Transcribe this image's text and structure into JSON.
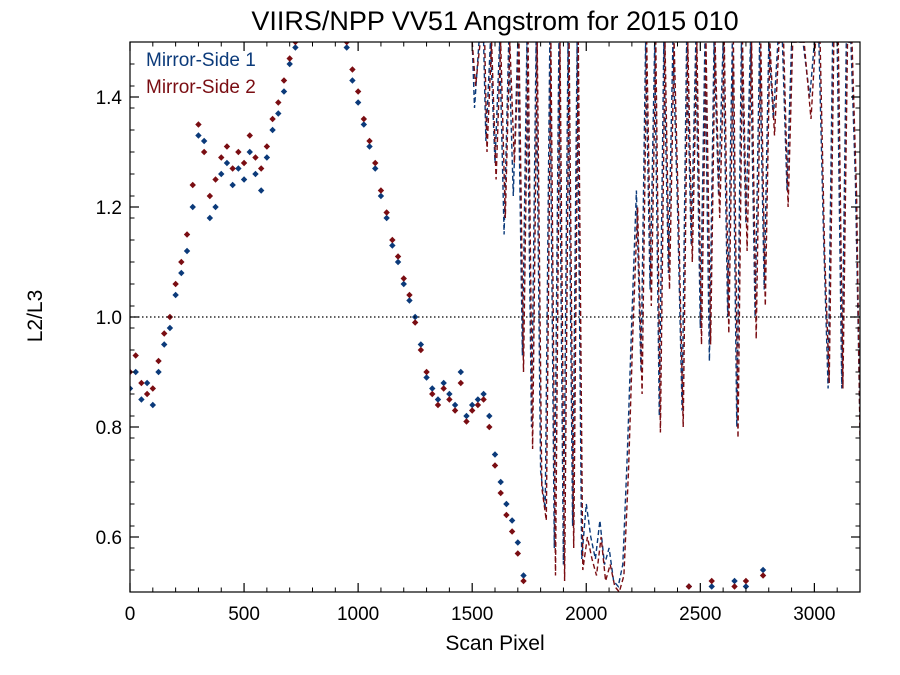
{
  "chart_data": {
    "type": "scatter",
    "title": "VIIRS/NPP VV51 Angstrom for 2015 010",
    "xlabel": "Scan Pixel",
    "ylabel": "L2/L3",
    "xlim": [
      0,
      3200
    ],
    "ylim": [
      0.5,
      1.5
    ],
    "x_ticks": [
      0,
      500,
      1000,
      1500,
      2000,
      2500,
      3000
    ],
    "x_tick_labels": [
      "0",
      "500",
      "1000",
      "1500",
      "2000",
      "2500",
      "3000"
    ],
    "y_ticks": [
      0.6,
      0.8,
      1.0,
      1.2,
      1.4
    ],
    "y_tick_labels": [
      "0.6",
      "0.8",
      "1.0",
      "1.2",
      "1.4"
    ],
    "reference_line": {
      "y": 1.0,
      "style": "dotted"
    },
    "legend_position": "top-left",
    "series": [
      {
        "name": "Mirror-Side 1",
        "color": "#0b3a7a",
        "marker": "diamond",
        "points": [
          [
            0,
            0.87
          ],
          [
            25,
            0.9
          ],
          [
            50,
            0.85
          ],
          [
            75,
            0.88
          ],
          [
            100,
            0.84
          ],
          [
            125,
            0.9
          ],
          [
            150,
            0.95
          ],
          [
            175,
            0.98
          ],
          [
            200,
            1.04
          ],
          [
            225,
            1.08
          ],
          [
            250,
            1.12
          ],
          [
            275,
            1.2
          ],
          [
            300,
            1.33
          ],
          [
            325,
            1.32
          ],
          [
            350,
            1.18
          ],
          [
            375,
            1.2
          ],
          [
            400,
            1.26
          ],
          [
            425,
            1.28
          ],
          [
            450,
            1.24
          ],
          [
            475,
            1.27
          ],
          [
            500,
            1.25
          ],
          [
            525,
            1.3
          ],
          [
            550,
            1.26
          ],
          [
            575,
            1.23
          ],
          [
            600,
            1.29
          ],
          [
            625,
            1.34
          ],
          [
            650,
            1.37
          ],
          [
            675,
            1.41
          ],
          [
            700,
            1.46
          ],
          [
            725,
            1.49
          ],
          [
            950,
            1.49
          ],
          [
            975,
            1.43
          ],
          [
            1000,
            1.39
          ],
          [
            1025,
            1.35
          ],
          [
            1050,
            1.31
          ],
          [
            1075,
            1.27
          ],
          [
            1100,
            1.22
          ],
          [
            1125,
            1.18
          ],
          [
            1150,
            1.13
          ],
          [
            1175,
            1.1
          ],
          [
            1200,
            1.06
          ],
          [
            1225,
            1.03
          ],
          [
            1250,
            1.0
          ],
          [
            1275,
            0.95
          ],
          [
            1300,
            0.89
          ],
          [
            1325,
            0.87
          ],
          [
            1350,
            0.85
          ],
          [
            1375,
            0.88
          ],
          [
            1400,
            0.86
          ],
          [
            1425,
            0.84
          ],
          [
            1450,
            0.9
          ],
          [
            1475,
            0.82
          ],
          [
            1500,
            0.84
          ],
          [
            1525,
            0.85
          ],
          [
            1550,
            0.86
          ],
          [
            1575,
            0.82
          ],
          [
            1600,
            0.75
          ],
          [
            1625,
            0.7
          ],
          [
            1650,
            0.66
          ],
          [
            1675,
            0.63
          ],
          [
            1700,
            0.59
          ],
          [
            1725,
            0.53
          ],
          [
            2450,
            0.51
          ],
          [
            2550,
            0.51
          ],
          [
            2650,
            0.52
          ],
          [
            2700,
            0.51
          ],
          [
            2775,
            0.54
          ]
        ]
      },
      {
        "name": "Mirror-Side 2",
        "color": "#7a0d12",
        "marker": "diamond",
        "points": [
          [
            0,
            0.9
          ],
          [
            25,
            0.93
          ],
          [
            50,
            0.88
          ],
          [
            75,
            0.86
          ],
          [
            100,
            0.87
          ],
          [
            125,
            0.92
          ],
          [
            150,
            0.97
          ],
          [
            175,
            1.0
          ],
          [
            200,
            1.06
          ],
          [
            225,
            1.1
          ],
          [
            250,
            1.15
          ],
          [
            275,
            1.24
          ],
          [
            300,
            1.35
          ],
          [
            325,
            1.3
          ],
          [
            350,
            1.22
          ],
          [
            375,
            1.25
          ],
          [
            400,
            1.29
          ],
          [
            425,
            1.31
          ],
          [
            450,
            1.27
          ],
          [
            475,
            1.3
          ],
          [
            500,
            1.28
          ],
          [
            525,
            1.33
          ],
          [
            550,
            1.29
          ],
          [
            575,
            1.27
          ],
          [
            600,
            1.31
          ],
          [
            625,
            1.36
          ],
          [
            650,
            1.39
          ],
          [
            675,
            1.43
          ],
          [
            700,
            1.47
          ],
          [
            725,
            1.5
          ],
          [
            950,
            1.5
          ],
          [
            975,
            1.45
          ],
          [
            1000,
            1.41
          ],
          [
            1025,
            1.36
          ],
          [
            1050,
            1.32
          ],
          [
            1075,
            1.28
          ],
          [
            1100,
            1.23
          ],
          [
            1125,
            1.19
          ],
          [
            1150,
            1.14
          ],
          [
            1175,
            1.11
          ],
          [
            1200,
            1.07
          ],
          [
            1225,
            1.04
          ],
          [
            1250,
            0.99
          ],
          [
            1275,
            0.94
          ],
          [
            1300,
            0.9
          ],
          [
            1325,
            0.86
          ],
          [
            1350,
            0.84
          ],
          [
            1375,
            0.87
          ],
          [
            1400,
            0.85
          ],
          [
            1425,
            0.83
          ],
          [
            1450,
            0.88
          ],
          [
            1475,
            0.81
          ],
          [
            1500,
            0.83
          ],
          [
            1525,
            0.84
          ],
          [
            1550,
            0.85
          ],
          [
            1575,
            0.8
          ],
          [
            1600,
            0.73
          ],
          [
            1625,
            0.68
          ],
          [
            1650,
            0.64
          ],
          [
            1675,
            0.61
          ],
          [
            1700,
            0.57
          ],
          [
            1725,
            0.52
          ],
          [
            2450,
            0.51
          ],
          [
            2550,
            0.52
          ],
          [
            2650,
            0.51
          ],
          [
            2700,
            0.52
          ],
          [
            2775,
            0.53
          ]
        ]
      }
    ],
    "dashed_series": [
      {
        "series": "Mirror-Side 1",
        "color": "#0b3a7a",
        "points": [
          [
            1500,
            1.5
          ],
          [
            1510,
            1.38
          ],
          [
            1530,
            1.5
          ],
          [
            1550,
            1.5
          ],
          [
            1560,
            1.32
          ],
          [
            1580,
            1.5
          ],
          [
            1600,
            1.28
          ],
          [
            1620,
            1.5
          ],
          [
            1640,
            1.15
          ],
          [
            1660,
            1.5
          ],
          [
            1680,
            1.22
          ],
          [
            1700,
            1.5
          ],
          [
            1720,
            0.93
          ],
          [
            1740,
            1.5
          ],
          [
            1760,
            0.8
          ],
          [
            1780,
            1.5
          ],
          [
            1800,
            0.72
          ],
          [
            1820,
            0.65
          ],
          [
            1840,
            1.5
          ],
          [
            1860,
            0.58
          ],
          [
            1880,
            1.5
          ],
          [
            1900,
            0.55
          ],
          [
            1920,
            1.5
          ],
          [
            1940,
            0.62
          ],
          [
            1960,
            1.5
          ],
          [
            1980,
            0.56
          ],
          [
            2000,
            0.66
          ],
          [
            2020,
            0.6
          ],
          [
            2040,
            0.56
          ],
          [
            2060,
            0.63
          ],
          [
            2080,
            0.55
          ],
          [
            2100,
            0.58
          ],
          [
            2120,
            0.52
          ],
          [
            2140,
            0.51
          ],
          [
            2160,
            0.55
          ],
          [
            2180,
            0.75
          ],
          [
            2200,
            1.0
          ],
          [
            2220,
            1.23
          ],
          [
            2240,
            0.9
          ],
          [
            2260,
            1.5
          ],
          [
            2280,
            1.05
          ],
          [
            2300,
            1.5
          ],
          [
            2320,
            0.82
          ],
          [
            2340,
            1.5
          ],
          [
            2360,
            1.08
          ],
          [
            2380,
            1.5
          ],
          [
            2400,
            1.2
          ],
          [
            2420,
            0.83
          ],
          [
            2440,
            1.5
          ],
          [
            2460,
            1.13
          ],
          [
            2480,
            1.5
          ],
          [
            2500,
            0.98
          ],
          [
            2520,
            1.5
          ],
          [
            2540,
            0.92
          ],
          [
            2560,
            1.5
          ],
          [
            2580,
            1.22
          ],
          [
            2600,
            1.5
          ],
          [
            2620,
            1.0
          ],
          [
            2640,
            1.5
          ],
          [
            2660,
            0.8
          ],
          [
            2680,
            1.5
          ],
          [
            2700,
            1.17
          ],
          [
            2720,
            1.5
          ],
          [
            2740,
            1.0
          ],
          [
            2760,
            1.5
          ],
          [
            2780,
            1.05
          ],
          [
            2800,
            1.5
          ],
          [
            2820,
            1.36
          ],
          [
            2840,
            1.5
          ],
          [
            2860,
            1.5
          ],
          [
            2880,
            1.23
          ],
          [
            2900,
            1.5
          ],
          [
            2950,
            1.5
          ],
          [
            2980,
            1.4
          ],
          [
            3000,
            1.5
          ],
          [
            3020,
            1.5
          ],
          [
            3040,
            1.15
          ],
          [
            3060,
            0.87
          ],
          [
            3080,
            1.5
          ],
          [
            3100,
            1.5
          ],
          [
            3120,
            0.87
          ],
          [
            3140,
            1.5
          ],
          [
            3160,
            1.5
          ],
          [
            3180,
            1.25
          ],
          [
            3200,
            0.8
          ]
        ]
      },
      {
        "series": "Mirror-Side 2",
        "color": "#7a0d12",
        "points": [
          [
            1500,
            1.5
          ],
          [
            1515,
            1.42
          ],
          [
            1535,
            1.5
          ],
          [
            1555,
            1.5
          ],
          [
            1565,
            1.3
          ],
          [
            1585,
            1.5
          ],
          [
            1605,
            1.25
          ],
          [
            1625,
            1.5
          ],
          [
            1645,
            1.18
          ],
          [
            1665,
            1.5
          ],
          [
            1685,
            1.28
          ],
          [
            1705,
            1.5
          ],
          [
            1725,
            0.9
          ],
          [
            1745,
            1.5
          ],
          [
            1765,
            0.76
          ],
          [
            1785,
            1.5
          ],
          [
            1805,
            0.69
          ],
          [
            1825,
            0.63
          ],
          [
            1845,
            1.5
          ],
          [
            1865,
            0.53
          ],
          [
            1885,
            1.5
          ],
          [
            1905,
            0.52
          ],
          [
            1925,
            1.5
          ],
          [
            1945,
            0.58
          ],
          [
            1965,
            1.5
          ],
          [
            1985,
            0.54
          ],
          [
            2005,
            0.6
          ],
          [
            2025,
            0.56
          ],
          [
            2045,
            0.53
          ],
          [
            2065,
            0.6
          ],
          [
            2085,
            0.52
          ],
          [
            2105,
            0.55
          ],
          [
            2125,
            0.51
          ],
          [
            2145,
            0.5
          ],
          [
            2165,
            0.53
          ],
          [
            2185,
            0.72
          ],
          [
            2205,
            0.98
          ],
          [
            2225,
            1.2
          ],
          [
            2245,
            0.86
          ],
          [
            2265,
            1.5
          ],
          [
            2285,
            1.02
          ],
          [
            2305,
            1.5
          ],
          [
            2325,
            0.79
          ],
          [
            2345,
            1.5
          ],
          [
            2365,
            1.05
          ],
          [
            2385,
            1.5
          ],
          [
            2405,
            1.18
          ],
          [
            2425,
            0.8
          ],
          [
            2445,
            1.5
          ],
          [
            2465,
            1.1
          ],
          [
            2485,
            1.5
          ],
          [
            2505,
            0.95
          ],
          [
            2525,
            1.5
          ],
          [
            2545,
            0.95
          ],
          [
            2565,
            1.5
          ],
          [
            2585,
            1.18
          ],
          [
            2605,
            1.5
          ],
          [
            2625,
            0.97
          ],
          [
            2645,
            1.5
          ],
          [
            2665,
            0.78
          ],
          [
            2685,
            1.5
          ],
          [
            2705,
            1.12
          ],
          [
            2725,
            1.5
          ],
          [
            2745,
            0.96
          ],
          [
            2765,
            1.5
          ],
          [
            2785,
            1.02
          ],
          [
            2805,
            1.5
          ],
          [
            2825,
            1.33
          ],
          [
            2845,
            1.5
          ],
          [
            2865,
            1.5
          ],
          [
            2885,
            1.2
          ],
          [
            2905,
            1.5
          ],
          [
            2955,
            1.5
          ],
          [
            2985,
            1.36
          ],
          [
            3005,
            1.5
          ],
          [
            3025,
            1.5
          ],
          [
            3045,
            1.12
          ],
          [
            3065,
            0.88
          ],
          [
            3085,
            1.5
          ],
          [
            3105,
            1.5
          ],
          [
            3125,
            0.87
          ],
          [
            3145,
            1.5
          ],
          [
            3165,
            1.5
          ],
          [
            3185,
            1.22
          ],
          [
            3200,
            0.78
          ]
        ]
      }
    ]
  }
}
